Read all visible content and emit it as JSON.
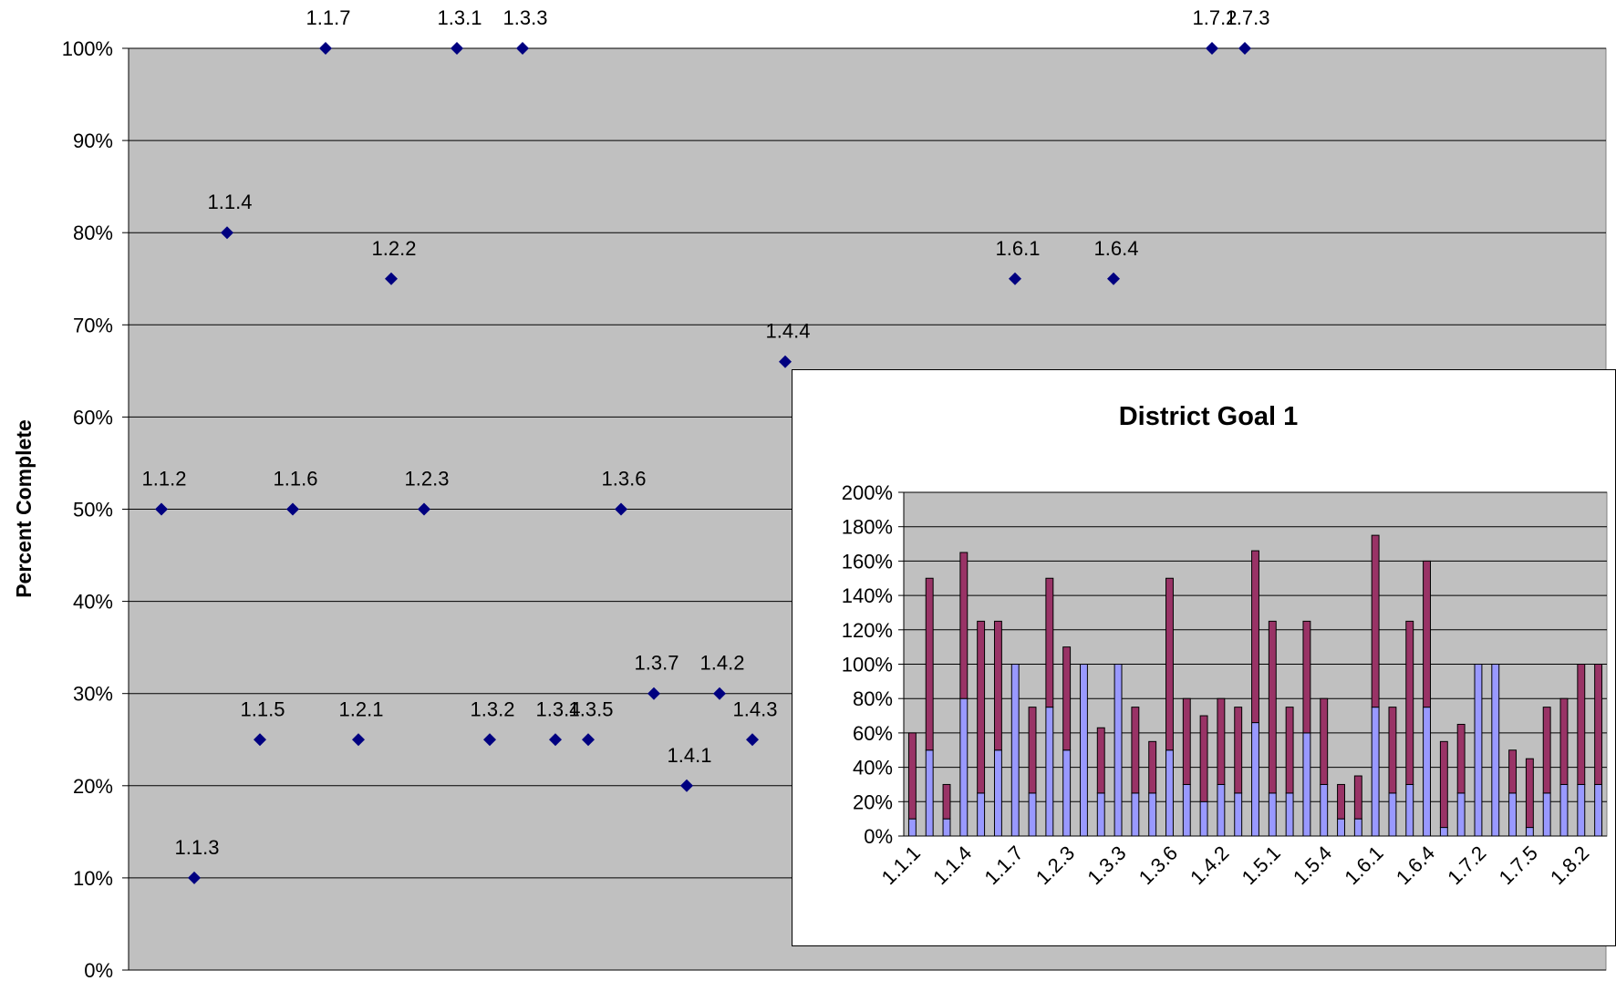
{
  "chart_data": [
    {
      "type": "scatter",
      "title": "",
      "xlabel": "",
      "ylabel": "Percent Complete",
      "ylim": [
        0,
        100
      ],
      "y_ticks": [
        "0%",
        "10%",
        "20%",
        "30%",
        "40%",
        "50%",
        "60%",
        "70%",
        "80%",
        "90%",
        "100%"
      ],
      "grid": true,
      "marker_color": "#000080",
      "plot_background": "#c0c0c0",
      "points": [
        {
          "label": "1.1.2",
          "x": 1,
          "y": 50
        },
        {
          "label": "1.1.3",
          "x": 2,
          "y": 10
        },
        {
          "label": "1.1.4",
          "x": 3,
          "y": 80
        },
        {
          "label": "1.1.5",
          "x": 4,
          "y": 25
        },
        {
          "label": "1.1.6",
          "x": 5,
          "y": 50
        },
        {
          "label": "1.1.7",
          "x": 6,
          "y": 100
        },
        {
          "label": "1.2.1",
          "x": 7,
          "y": 25
        },
        {
          "label": "1.2.2",
          "x": 8,
          "y": 75
        },
        {
          "label": "1.2.3",
          "x": 9,
          "y": 50
        },
        {
          "label": "1.3.1",
          "x": 10,
          "y": 100
        },
        {
          "label": "1.3.2",
          "x": 11,
          "y": 25
        },
        {
          "label": "1.3.3",
          "x": 12,
          "y": 100
        },
        {
          "label": "1.3.4",
          "x": 13,
          "y": 25
        },
        {
          "label": "1.3.5",
          "x": 14,
          "y": 25
        },
        {
          "label": "1.3.6",
          "x": 15,
          "y": 50
        },
        {
          "label": "1.3.7",
          "x": 16,
          "y": 30
        },
        {
          "label": "1.4.1",
          "x": 17,
          "y": 20
        },
        {
          "label": "1.4.2",
          "x": 18,
          "y": 30
        },
        {
          "label": "1.4.3",
          "x": 19,
          "y": 25
        },
        {
          "label": "1.4.4",
          "x": 20,
          "y": 66
        },
        {
          "label": "1.6.1",
          "x": 27,
          "y": 75
        },
        {
          "label": "1.6.4",
          "x": 30,
          "y": 75
        },
        {
          "label": "1.7.2",
          "x": 33,
          "y": 100
        },
        {
          "label": "1.7.3",
          "x": 34,
          "y": 100
        }
      ]
    },
    {
      "type": "bar",
      "stacked": true,
      "title": "District Goal 1",
      "ylim": [
        0,
        200
      ],
      "y_ticks": [
        "0%",
        "20%",
        "40%",
        "60%",
        "80%",
        "100%",
        "120%",
        "140%",
        "160%",
        "180%",
        "200%"
      ],
      "grid": true,
      "plot_background": "#c0c0c0",
      "category_tick_labels": [
        "1.1.1",
        "1.1.4",
        "1.1.7",
        "1.2.3",
        "1.3.3",
        "1.3.6",
        "1.4.2",
        "1.5.1",
        "1.5.4",
        "1.6.1",
        "1.6.4",
        "1.7.2",
        "1.7.5",
        "1.8.2"
      ],
      "series": [
        {
          "color": "#9999ff",
          "values": [
            10,
            50,
            10,
            80,
            25,
            50,
            100,
            25,
            75,
            50,
            100,
            25,
            100,
            25,
            25,
            50,
            30,
            20,
            30,
            25,
            66,
            25,
            25,
            60,
            30,
            10,
            10,
            75,
            25,
            30,
            75,
            5,
            25,
            100,
            100,
            25,
            5,
            25,
            30,
            30,
            30
          ]
        },
        {
          "color": "#993366",
          "values": [
            50,
            100,
            20,
            85,
            100,
            75,
            0,
            50,
            75,
            60,
            0,
            38,
            0,
            50,
            30,
            100,
            50,
            50,
            50,
            50,
            100,
            100,
            50,
            65,
            50,
            20,
            25,
            100,
            50,
            95,
            85,
            50,
            40,
            0,
            0,
            25,
            40,
            50,
            50,
            70,
            70
          ]
        }
      ]
    }
  ]
}
